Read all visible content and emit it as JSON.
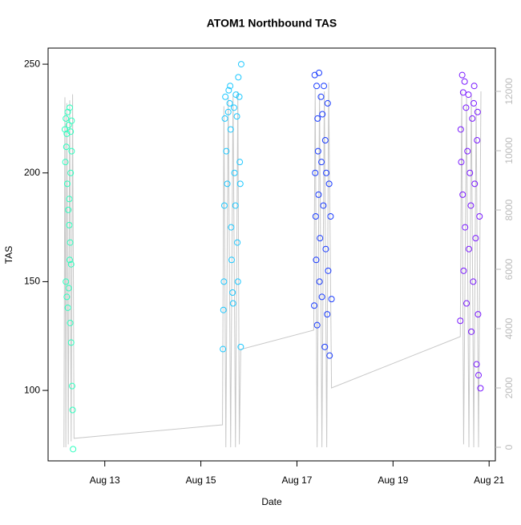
{
  "chart_data": {
    "type": "scatter",
    "title": "ATOM1 Northbound TAS",
    "x_label": "Date",
    "y_label": "TAS",
    "xlim": [
      11.82,
      21.13
    ],
    "ylim": [
      67.6,
      257.4
    ],
    "y2lim": [
      -459,
      13459
    ],
    "xticks": [
      {
        "value": 13,
        "label": "Aug 13"
      },
      {
        "value": 15,
        "label": "Aug 15"
      },
      {
        "value": 17,
        "label": "Aug 17"
      },
      {
        "value": 19,
        "label": "Aug 19"
      },
      {
        "value": 21,
        "label": "Aug 21"
      }
    ],
    "yticks": [
      100,
      150,
      200,
      250
    ],
    "y2ticks": [
      0,
      2000,
      4000,
      6000,
      8000,
      10000,
      12000
    ],
    "series": [
      {
        "color": "#2fffbf",
        "x": [
          12.17,
          12.19,
          12.21,
          12.23,
          12.25,
          12.27,
          12.29,
          12.31,
          12.2,
          12.18,
          12.22,
          12.24,
          12.26,
          12.28,
          12.3,
          12.19,
          12.21,
          12.23,
          12.25,
          12.27,
          12.29,
          12.31,
          12.33,
          12.32,
          12.34,
          12.3,
          12.28,
          12.26
        ],
        "values": [
          220,
          225,
          218,
          228,
          222,
          230,
          219,
          224,
          212,
          205,
          195,
          183,
          176,
          168,
          158,
          150,
          143,
          138,
          147,
          160,
          200,
          210,
          91,
          102,
          73,
          122,
          131,
          188
        ]
      },
      {
        "color": "#1ec8ff",
        "x": [
          15.46,
          15.47,
          15.48,
          15.49,
          15.5,
          15.51,
          15.53,
          15.55,
          15.57,
          15.58,
          15.6,
          15.62,
          15.63,
          15.64,
          15.66,
          15.67,
          15.69,
          15.7,
          15.72,
          15.73,
          15.75,
          15.76,
          15.77,
          15.78,
          15.8,
          15.81,
          15.82,
          15.83,
          15.84,
          15.61
        ],
        "values": [
          119,
          137,
          150,
          185,
          225,
          235,
          210,
          195,
          228,
          238,
          232,
          220,
          175,
          160,
          145,
          140,
          230,
          200,
          185,
          236,
          226,
          168,
          150,
          244,
          235,
          205,
          195,
          120,
          250,
          240
        ]
      },
      {
        "color": "#1a3cff",
        "x": [
          17.36,
          17.37,
          17.38,
          17.39,
          17.4,
          17.41,
          17.42,
          17.43,
          17.44,
          17.45,
          17.46,
          17.47,
          17.48,
          17.5,
          17.51,
          17.52,
          17.53,
          17.55,
          17.56,
          17.58,
          17.59,
          17.6,
          17.61,
          17.63,
          17.64,
          17.65,
          17.67,
          17.68,
          17.7,
          17.72
        ],
        "values": [
          139,
          245,
          200,
          180,
          160,
          240,
          130,
          225,
          210,
          190,
          246,
          150,
          170,
          235,
          205,
          143,
          227,
          185,
          240,
          120,
          215,
          165,
          200,
          135,
          232,
          155,
          195,
          116,
          180,
          142
        ]
      },
      {
        "color": "#7a1aff",
        "x": [
          20.4,
          20.41,
          20.42,
          20.44,
          20.45,
          20.46,
          20.47,
          20.49,
          20.5,
          20.52,
          20.53,
          20.55,
          20.57,
          20.58,
          20.6,
          20.62,
          20.63,
          20.65,
          20.67,
          20.69,
          20.7,
          20.72,
          20.74,
          20.75,
          20.77,
          20.78,
          20.8,
          20.82,
          20.76,
          20.68
        ],
        "values": [
          132,
          220,
          205,
          245,
          190,
          237,
          155,
          242,
          175,
          230,
          140,
          210,
          236,
          165,
          200,
          185,
          127,
          225,
          150,
          240,
          195,
          170,
          112,
          215,
          135,
          107,
          180,
          101,
          228,
          232
        ]
      },
      {
        "type": "line",
        "axis": "y2",
        "color": "#c8c8c8",
        "x": [
          12.15,
          12.17,
          12.19,
          12.21,
          12.24,
          12.27,
          12.3,
          12.33,
          12.36,
          15.45,
          15.48,
          15.52,
          15.57,
          15.62,
          15.67,
          15.72,
          15.77,
          15.8,
          15.83,
          17.35,
          17.38,
          17.42,
          17.47,
          17.52,
          17.57,
          17.62,
          17.66,
          17.72,
          20.4,
          20.43,
          20.47,
          20.53,
          20.58,
          20.63,
          20.68,
          20.73,
          20.78,
          20.83
        ],
        "values": [
          0,
          11800,
          0,
          11600,
          100,
          11700,
          200,
          11900,
          300,
          757,
          11500,
          0,
          11800,
          0,
          11900,
          0,
          12000,
          100,
          3300,
          3950,
          12100,
          0,
          11900,
          0,
          12000,
          0,
          12300,
          2000,
          3730,
          12000,
          100,
          11800,
          0,
          11900,
          0,
          11500,
          0,
          12000
        ]
      }
    ]
  }
}
